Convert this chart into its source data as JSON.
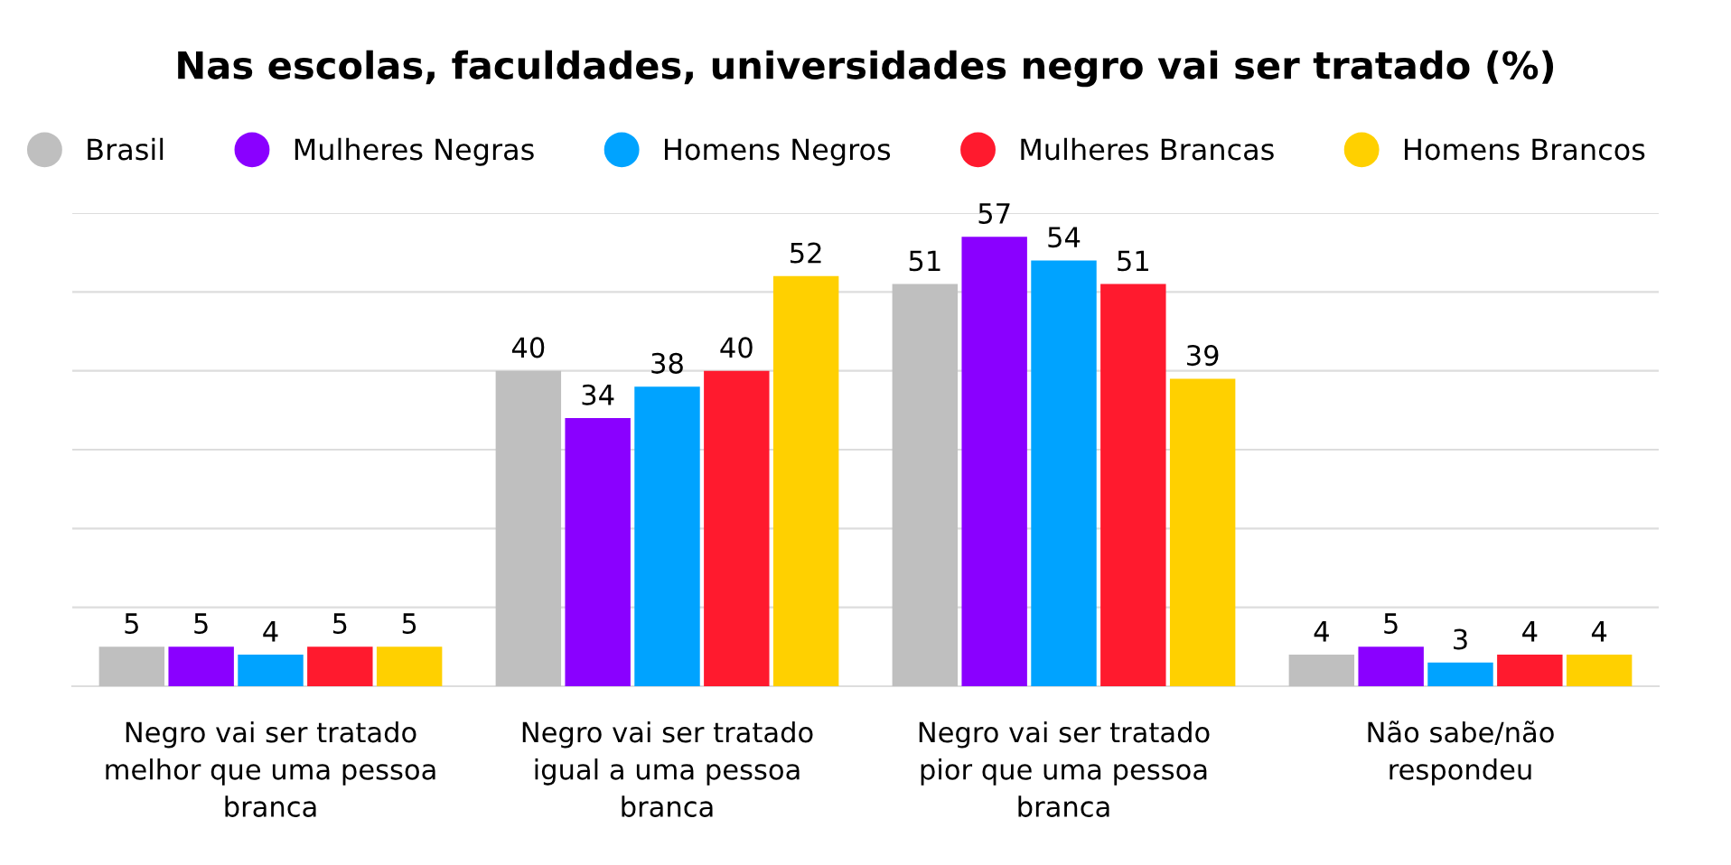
{
  "chart_data": {
    "type": "bar",
    "title": "Nas escolas, faculdades, universidades negro vai ser tratado (%)",
    "categories": [
      "Negro vai ser tratado\nmelhor que uma pessoa\nbranca",
      "Negro vai ser tratado\nigual a uma pessoa\nbranca",
      "Negro vai ser tratado\npior que uma pessoa\nbranca",
      "Não sabe/não\nrespondeu"
    ],
    "series": [
      {
        "name": "Brasil",
        "color": "#bfbfbf",
        "values": [
          5,
          40,
          51,
          4
        ]
      },
      {
        "name": "Mulheres Negras",
        "color": "#8a00ff",
        "values": [
          5,
          34,
          57,
          5
        ]
      },
      {
        "name": "Homens Negros",
        "color": "#00a3ff",
        "values": [
          4,
          38,
          54,
          3
        ]
      },
      {
        "name": "Mulheres Brancas",
        "color": "#ff1a2e",
        "values": [
          5,
          40,
          51,
          4
        ]
      },
      {
        "name": "Homens Brancos",
        "color": "#ffd000",
        "values": [
          5,
          52,
          39,
          4
        ]
      }
    ],
    "ylim": [
      0,
      60
    ],
    "yticks": [
      {
        "value": 0,
        "label": null
      },
      {
        "value": 10,
        "label": null
      },
      {
        "value": 20,
        "label": null
      },
      {
        "value": 30,
        "label": null
      },
      {
        "value": 40,
        "label": null
      },
      {
        "value": 50,
        "label": null
      },
      {
        "value": 60,
        "label": null
      }
    ],
    "tick_labels": "x",
    "grid": "y",
    "legend": "top",
    "data_labels": true
  }
}
